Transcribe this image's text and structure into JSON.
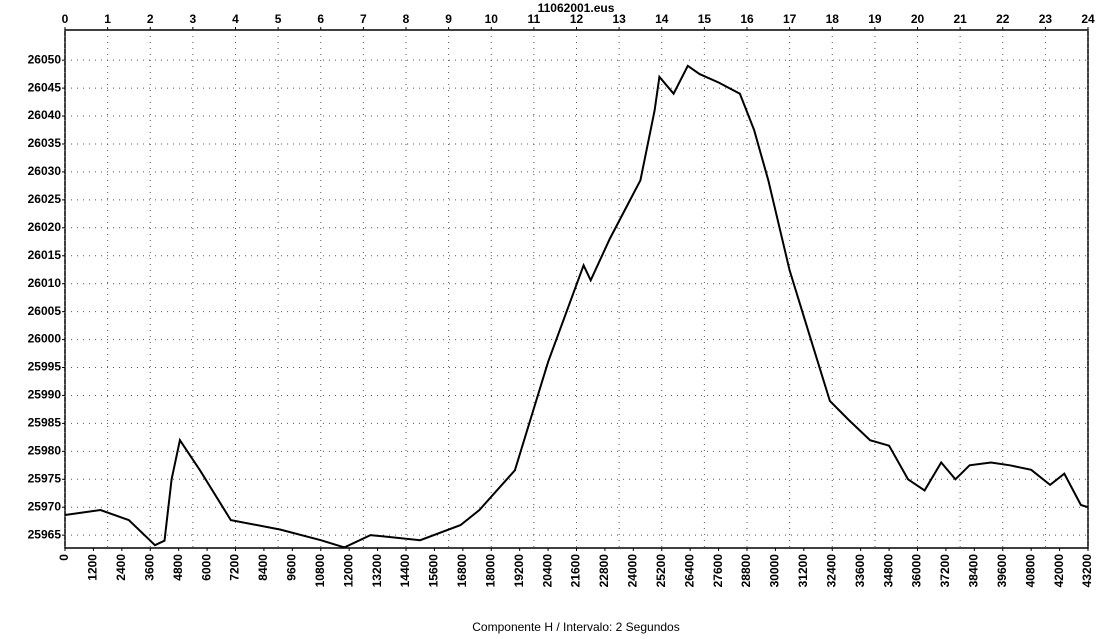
{
  "chart_data": {
    "type": "line",
    "title": "11062001.eus",
    "x_label": "Componente H / Intervalo: 2 Segundos",
    "x": [
      0,
      1500,
      2700,
      3800,
      4200,
      4500,
      4850,
      5700,
      7000,
      9100,
      10800,
      11800,
      12900,
      15000,
      16700,
      17500,
      19000,
      20400,
      21900,
      22200,
      23000,
      24300,
      24900,
      25100,
      25700,
      26300,
      26800,
      27600,
      28500,
      29100,
      29700,
      30600,
      31500,
      32300,
      33100,
      34000,
      34800,
      35600,
      36300,
      37000,
      37600,
      38200,
      39100,
      39900,
      40800,
      41600,
      42200,
      42900,
      43200
    ],
    "values": [
      25968.6,
      25969.5,
      25967.7,
      25963.2,
      25964,
      25975,
      25982,
      25976.6,
      25967.7,
      25966,
      25964.1,
      25962.8,
      25965,
      25964.1,
      25966.8,
      25969.5,
      25976.6,
      25996,
      26013.3,
      26010.6,
      26018,
      26028.5,
      26041,
      26047,
      26044,
      26049,
      26047.5,
      26046,
      26044,
      26037.5,
      26028.5,
      26012.4,
      26000,
      25989,
      25985.6,
      25982,
      25981,
      25975,
      25973,
      25978,
      25975,
      25977.5,
      25978,
      25977.5,
      25976.7,
      25974,
      25976,
      25970.4,
      25970
    ],
    "color": "#000000",
    "xlim": [
      0,
      43200
    ],
    "xticks": [
      0,
      1200,
      2400,
      3600,
      4800,
      6000,
      7200,
      8400,
      9600,
      10800,
      12000,
      13200,
      14400,
      15600,
      16800,
      18000,
      19200,
      20400,
      21600,
      22800,
      24000,
      25200,
      26400,
      27600,
      28800,
      30000,
      31200,
      32400,
      33600,
      34800,
      36000,
      37200,
      38400,
      39600,
      40800,
      42000,
      43200
    ],
    "x2lim": [
      0,
      24
    ],
    "x2ticks": [
      0,
      1,
      2,
      3,
      4,
      5,
      6,
      7,
      8,
      9,
      10,
      11,
      12,
      13,
      14,
      15,
      16,
      17,
      18,
      19,
      20,
      21,
      22,
      23,
      24
    ],
    "ylim": [
      25962.7,
      26055.4
    ],
    "yticks": [
      25965,
      25970,
      25975,
      25980,
      25985,
      25990,
      25995,
      26000,
      26005,
      26010,
      26015,
      26020,
      26025,
      26030,
      26035,
      26040,
      26045,
      26050
    ],
    "grid": true
  }
}
